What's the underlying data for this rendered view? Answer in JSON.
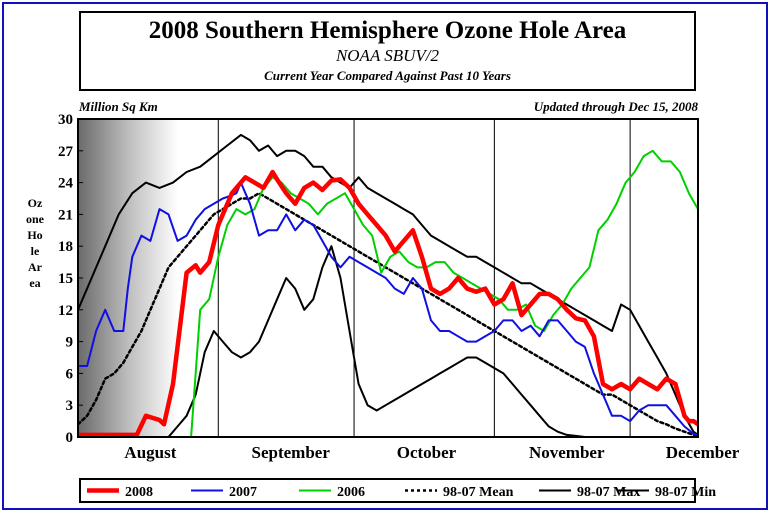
{
  "chart_data": {
    "type": "line",
    "title": "2008 Southern Hemisphere Ozone Hole Area",
    "subtitle": "NOAA SBUV/2",
    "subtitle2": "Current Year Compared Against Past 10 Years",
    "units_label": "Million Sq Km",
    "updated_label": "Updated through Dec 15, 2008",
    "ylabel": "Ozone Hole Area",
    "ylim": [
      0,
      30
    ],
    "yticks": [
      "30",
      "27",
      "24",
      "21",
      "18",
      "15",
      "12",
      "9",
      "6",
      "3",
      "0"
    ],
    "month_labels": [
      {
        "label": "August",
        "day": 16
      },
      {
        "label": "September",
        "day": 47
      },
      {
        "label": "October",
        "day": 77
      },
      {
        "label": "November",
        "day": 108
      },
      {
        "label": "December",
        "day": 138
      }
    ],
    "month_boundaries": [
      31,
      61,
      92,
      122
    ],
    "xlim": [
      0,
      137
    ],
    "grid": true,
    "legend_position": "bottom",
    "series": [
      {
        "name": "2008",
        "color": "#ff0000",
        "width": 4.5,
        "dash": "",
        "x": [
          0,
          13,
          15,
          18,
          19,
          21,
          24,
          26,
          27,
          29,
          31,
          34,
          36,
          37,
          39,
          41,
          43,
          44,
          46,
          48,
          50,
          52,
          54,
          56,
          58,
          60,
          62,
          64,
          66,
          68,
          70,
          72,
          74,
          76,
          78,
          80,
          82,
          84,
          86,
          88,
          90,
          92,
          94,
          96,
          98,
          100,
          102,
          104,
          106,
          108,
          110,
          112,
          114,
          116,
          118,
          120,
          122,
          124,
          126,
          128,
          130,
          132,
          134,
          135,
          136,
          137
        ],
        "y": [
          0.2,
          0.2,
          2.0,
          1.6,
          1.2,
          5,
          15.5,
          16.2,
          15.5,
          16.5,
          20,
          23,
          24,
          24.5,
          24,
          23.5,
          25,
          24.3,
          23,
          22,
          23.5,
          24,
          23.3,
          24.2,
          24.3,
          23.5,
          22,
          21,
          20,
          19,
          17.5,
          18.5,
          19.5,
          17,
          14,
          13.5,
          14,
          15,
          14,
          13.7,
          14,
          12.5,
          13,
          14.5,
          11.5,
          12.5,
          13.5,
          13.5,
          13,
          12,
          11.2,
          11,
          9.5,
          5,
          4.5,
          5,
          4.5,
          5.5,
          5,
          4.5,
          5.5,
          5,
          2,
          1.5,
          1.5,
          1.2
        ]
      },
      {
        "name": "2007",
        "color": "#1010e0",
        "width": 2,
        "dash": "",
        "x": [
          0,
          2,
          4,
          6,
          8,
          10,
          11,
          12,
          14,
          16,
          18,
          20,
          22,
          24,
          26,
          28,
          30,
          32,
          34,
          35,
          36,
          37,
          38,
          40,
          42,
          44,
          46,
          48,
          50,
          52,
          54,
          56,
          58,
          60,
          62,
          64,
          66,
          68,
          70,
          72,
          74,
          76,
          78,
          80,
          82,
          84,
          86,
          88,
          90,
          92,
          94,
          96,
          98,
          100,
          102,
          104,
          106,
          108,
          110,
          112,
          114,
          116,
          118,
          120,
          122,
          124,
          126,
          128,
          130,
          132,
          134,
          136,
          137
        ],
        "y": [
          6.7,
          6.7,
          10,
          12,
          10,
          10,
          14,
          17,
          19,
          18.5,
          21.5,
          21,
          18.5,
          19,
          20.5,
          21.5,
          22,
          22.5,
          22.8,
          23,
          24,
          23,
          22,
          19,
          19.5,
          19.5,
          21,
          19.5,
          20.5,
          20,
          18.5,
          17,
          16,
          17,
          16.5,
          16,
          15.5,
          15,
          14,
          13.5,
          15,
          14,
          11,
          10,
          10,
          9.5,
          9,
          9,
          9.5,
          10,
          11,
          11,
          10,
          10.5,
          9.5,
          11,
          11,
          10,
          9,
          8.5,
          6,
          4,
          2,
          2,
          1.5,
          2.5,
          3,
          3,
          3,
          2,
          1,
          0.3,
          0.2
        ]
      },
      {
        "name": "2006",
        "color": "#00d000",
        "width": 2,
        "dash": "",
        "x": [
          0,
          25,
          27,
          29,
          31,
          33,
          35,
          37,
          39,
          41,
          43,
          45,
          47,
          49,
          51,
          53,
          55,
          57,
          59,
          61,
          63,
          65,
          67,
          69,
          71,
          73,
          75,
          77,
          79,
          81,
          83,
          85,
          87,
          89,
          91,
          93,
          95,
          97,
          99,
          101,
          103,
          105,
          107,
          109,
          111,
          113,
          115,
          117,
          119,
          121,
          123,
          125,
          127,
          129,
          131,
          133,
          135,
          137
        ],
        "y": [
          0,
          0,
          12,
          13,
          17,
          20,
          21.5,
          21,
          21.5,
          23.5,
          24.5,
          24,
          23,
          22.5,
          22,
          21,
          22,
          22.5,
          23,
          21.5,
          20,
          19,
          15.5,
          17,
          17.5,
          16.5,
          16,
          16,
          16.5,
          16.5,
          15.5,
          15,
          14.5,
          14,
          13.5,
          13,
          12,
          12,
          12.5,
          10.5,
          10,
          11.5,
          12.5,
          14,
          15,
          16,
          19.5,
          20.5,
          22,
          24,
          25,
          26.5,
          27,
          26,
          26,
          25,
          23,
          21.5
        ]
      },
      {
        "name": "98-07 Mean",
        "color": "#000000",
        "width": 2.5,
        "dash": "3 3",
        "x": [
          0,
          2,
          4,
          6,
          8,
          10,
          12,
          14,
          16,
          18,
          20,
          22,
          24,
          26,
          28,
          30,
          32,
          34,
          36,
          38,
          40,
          42,
          44,
          46,
          48,
          50,
          52,
          54,
          56,
          58,
          60,
          62,
          64,
          66,
          68,
          70,
          72,
          74,
          76,
          78,
          80,
          82,
          84,
          86,
          88,
          90,
          92,
          94,
          96,
          98,
          100,
          102,
          104,
          106,
          108,
          110,
          112,
          114,
          116,
          118,
          120,
          122,
          124,
          126,
          128,
          130,
          132,
          134,
          136,
          137
        ],
        "y": [
          1.2,
          2,
          3.5,
          5.5,
          6,
          7,
          8.5,
          10,
          12,
          14,
          16,
          17,
          18,
          19,
          20,
          21,
          21.5,
          22,
          22.5,
          22.5,
          23,
          22.5,
          22,
          21.5,
          21,
          20.5,
          20,
          19.5,
          19,
          18.5,
          18,
          17.5,
          17,
          16.5,
          16,
          15.5,
          15,
          14.5,
          14,
          13.5,
          13,
          12.5,
          12,
          11.5,
          11,
          10.5,
          10,
          9.5,
          9,
          8.5,
          8,
          7.5,
          7,
          6.5,
          6,
          5.5,
          5,
          4.5,
          4,
          4,
          3.5,
          3,
          2.5,
          2,
          1.5,
          1.2,
          0.8,
          0.5,
          0.2,
          0.1
        ]
      },
      {
        "name": "98-07 Max",
        "color": "#000000",
        "width": 2,
        "dash": "",
        "x": [
          0,
          3,
          6,
          9,
          12,
          15,
          18,
          21,
          24,
          27,
          30,
          33,
          36,
          38,
          40,
          42,
          44,
          46,
          48,
          50,
          52,
          54,
          56,
          58,
          60,
          62,
          64,
          66,
          68,
          70,
          72,
          74,
          76,
          78,
          80,
          82,
          84,
          86,
          88,
          90,
          92,
          94,
          96,
          98,
          100,
          102,
          104,
          106,
          108,
          110,
          112,
          114,
          116,
          118,
          120,
          122,
          124,
          126,
          128,
          130,
          132,
          134,
          136,
          137
        ],
        "y": [
          12,
          15,
          18,
          21,
          23,
          24,
          23.5,
          24,
          25,
          25.5,
          26.5,
          27.5,
          28.5,
          28,
          27,
          27.5,
          26.5,
          27,
          27,
          26.5,
          25.5,
          25.5,
          24.5,
          24,
          23.5,
          24.5,
          23.5,
          23,
          22.5,
          22,
          21.5,
          21,
          20,
          19,
          18.5,
          18,
          17.5,
          17,
          17,
          16.5,
          16,
          15.5,
          15,
          14.5,
          14.5,
          14,
          13.5,
          13,
          12.5,
          12,
          11.5,
          11,
          10.5,
          10,
          12.5,
          12,
          10.5,
          9,
          7.5,
          6,
          4,
          2,
          0.5,
          0.2
        ]
      },
      {
        "name": "98-07 Min",
        "color": "#000000",
        "width": 2,
        "dash": "",
        "x": [
          0,
          20,
          22,
          24,
          26,
          28,
          30,
          32,
          34,
          36,
          38,
          40,
          42,
          44,
          46,
          48,
          50,
          52,
          54,
          56,
          58,
          60,
          62,
          64,
          66,
          68,
          70,
          72,
          74,
          76,
          78,
          80,
          82,
          84,
          86,
          88,
          90,
          92,
          94,
          96,
          98,
          100,
          102,
          104,
          106,
          108,
          110,
          112,
          114,
          116,
          118,
          120,
          122,
          124,
          126,
          128,
          130,
          132,
          134,
          136,
          137
        ],
        "y": [
          0,
          0,
          1,
          2,
          4,
          8,
          10,
          9,
          8,
          7.5,
          8,
          9,
          11,
          13,
          15,
          14,
          12,
          13,
          16,
          18,
          15,
          10,
          5,
          3,
          2.5,
          3,
          3.5,
          4,
          4.5,
          5,
          5.5,
          6,
          6.5,
          7,
          7.5,
          7.5,
          7,
          6.5,
          6,
          5,
          4,
          3,
          2,
          1,
          0.5,
          0.2,
          0.1,
          0,
          0,
          0,
          0,
          0,
          0,
          0,
          0,
          0,
          0,
          0,
          0,
          0,
          0
        ]
      }
    ]
  }
}
